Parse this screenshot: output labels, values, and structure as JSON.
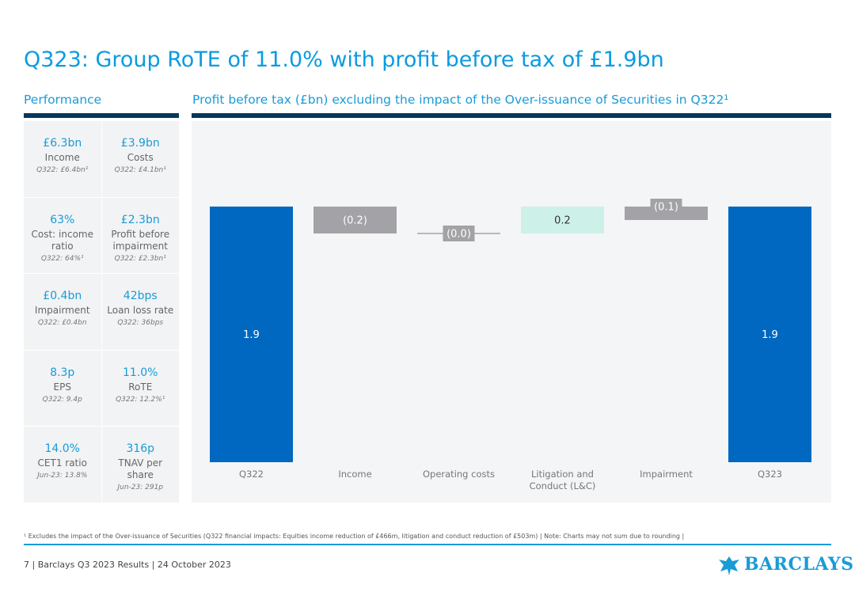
{
  "title": "Q323: Group RoTE of 11.0% with profit before tax of £1.9bn",
  "panel": {
    "heading": "Performance",
    "cells": [
      {
        "value": "£6.3bn",
        "label": "Income",
        "compare": "Q322: £6.4bn¹"
      },
      {
        "value": "£3.9bn",
        "label": "Costs",
        "compare": "Q322: £4.1bn¹"
      },
      {
        "value": "63%",
        "label": "Cost: income ratio",
        "compare": "Q322: 64%¹"
      },
      {
        "value": "£2.3bn",
        "label": "Profit before impairment",
        "compare": "Q322: £2.3bn¹"
      },
      {
        "value": "£0.4bn",
        "label": "Impairment",
        "compare": "Q322: £0.4bn"
      },
      {
        "value": "42bps",
        "label": "Loan loss rate",
        "compare": "Q322: 36bps"
      },
      {
        "value": "8.3p",
        "label": "EPS",
        "compare": "Q322: 9.4p"
      },
      {
        "value": "11.0%",
        "label": "RoTE",
        "compare": "Q322: 12.2%¹"
      },
      {
        "value": "14.0%",
        "label": "CET1 ratio",
        "compare": "Jun-23: 13.8%"
      },
      {
        "value": "316p",
        "label": "TNAV per share",
        "compare": "Jun-23: 291p"
      }
    ]
  },
  "chart_data": {
    "type": "waterfall",
    "title": "Profit before tax (£bn) excluding the impact of the Over-issuance of Securities in Q322¹",
    "categories": [
      "Q322",
      "Income",
      "Operating costs",
      "Litigation and Conduct (L&C)",
      "Impairment",
      "Q323"
    ],
    "values": [
      1.9,
      -0.2,
      0,
      0.2,
      -0.1,
      1.9
    ],
    "value_labels": [
      "1.9",
      "(0.2)",
      "(0.0)",
      "0.2",
      "(0.1)",
      "1.9"
    ],
    "totals": [
      true,
      false,
      false,
      false,
      false,
      true
    ],
    "colors": [
      "#0068c0",
      "#a3a3a7",
      "#a3a3a7",
      "#cdf0e9",
      "#a3a3a7",
      "#0068c0"
    ]
  },
  "footnote": "¹ Excludes the impact of the Over-issuance of Securities (Q322 financial impacts: Equities income reduction of £466m, litigation and conduct reduction of £503m) | Note: Charts may not sum due to rounding |",
  "footer": "7 | Barclays Q3 2023 Results | 24 October 2023",
  "logo": "BARCLAYS"
}
